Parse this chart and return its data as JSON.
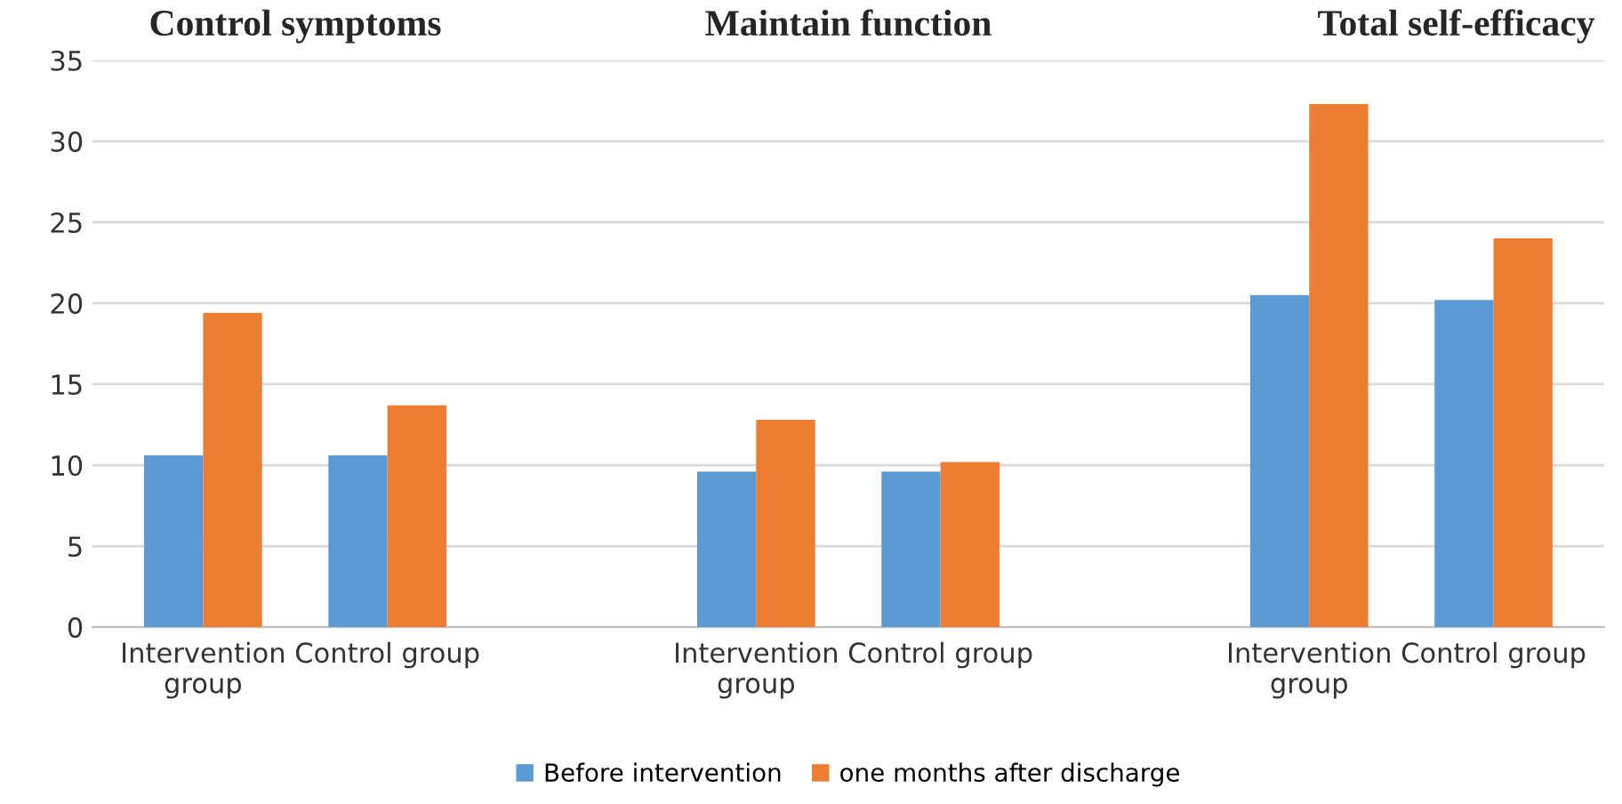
{
  "chart_data": {
    "type": "bar",
    "categories": [
      "Intervention group",
      "Control group",
      null,
      "Intervention group",
      "Control group",
      null,
      "Intervention group",
      "Control group"
    ],
    "series": [
      {
        "name": "Before intervention",
        "color": "#5b9bd5",
        "values": [
          10.6,
          10.6,
          null,
          9.6,
          9.6,
          null,
          20.5,
          20.2
        ]
      },
      {
        "name": "one months after discharge",
        "color": "#ed7d31",
        "values": [
          19.4,
          13.7,
          null,
          12.8,
          10.2,
          null,
          32.3,
          24.0
        ]
      }
    ],
    "annotations": [
      "Control symptoms",
      "Maintain function",
      "Total self-efficacy"
    ],
    "ylim": [
      0,
      35
    ],
    "yticks": [
      0,
      5,
      10,
      15,
      20,
      25,
      30,
      35
    ],
    "grid": "y",
    "legend": "bottom"
  }
}
